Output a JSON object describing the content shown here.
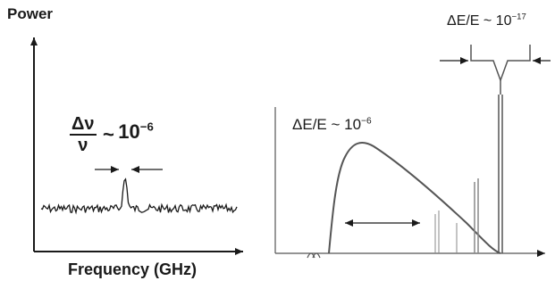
{
  "left_panel": {
    "y_axis_label": "Power",
    "x_axis_label": "Frequency (GHz)",
    "linewidth": {
      "numerator": "Δν",
      "denominator": "ν",
      "approx": "~",
      "base": "10",
      "exponent": "−6"
    }
  },
  "right_panel": {
    "broad_label": {
      "text": "ΔE/E ~ 10",
      "exponent": "−6"
    },
    "narrow_label": {
      "text": "ΔE/E ~ 10",
      "exponent": "−17"
    }
  },
  "colors": {
    "line": "#1a1a1a",
    "curve": "#555555",
    "background": "#ffffff"
  }
}
